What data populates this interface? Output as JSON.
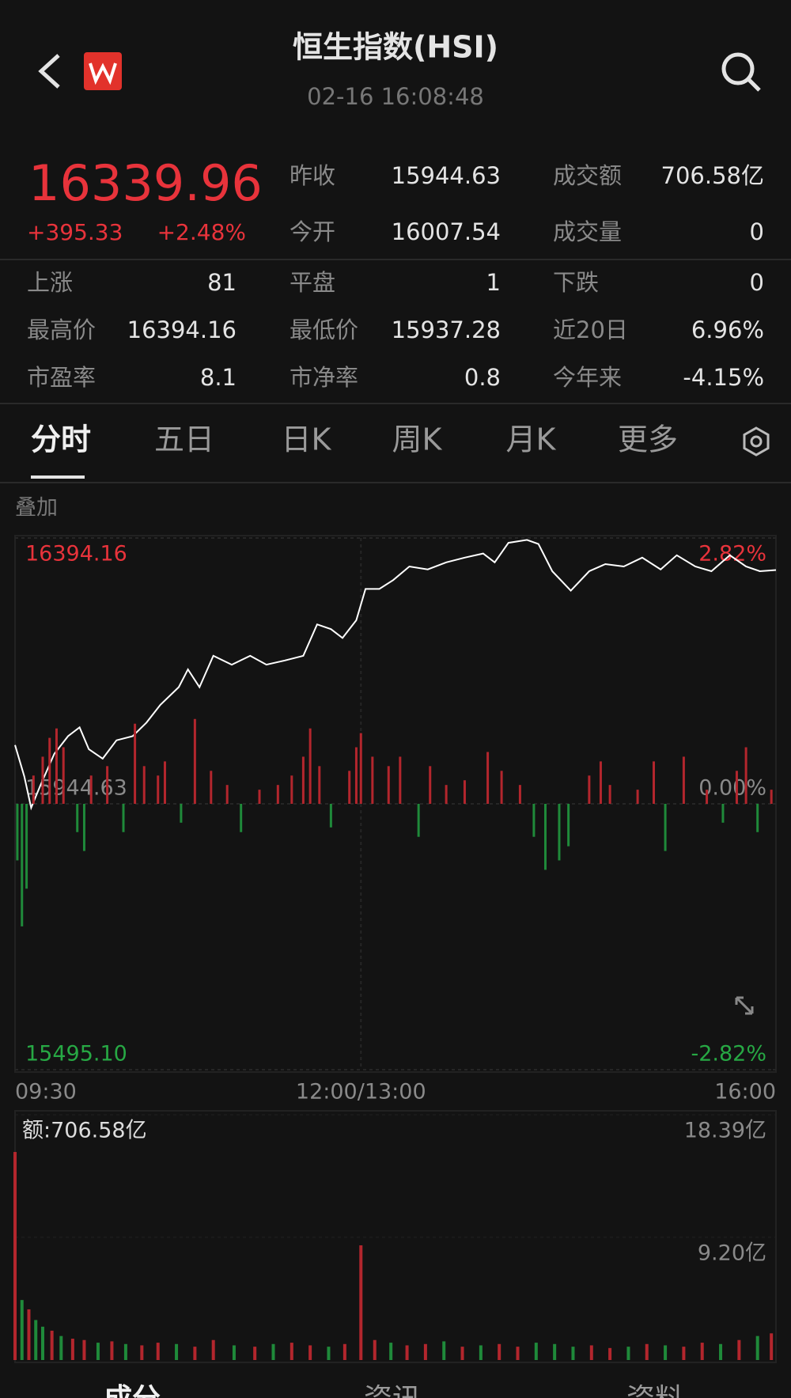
{
  "header": {
    "title": "恒生指数(HSI)",
    "time": "02-16 16:08:48"
  },
  "quote": {
    "price": "16339.96",
    "change": "+395.33",
    "change_pct": "+2.48%",
    "stats": [
      {
        "label": "昨收",
        "value": "15944.63"
      },
      {
        "label": "成交额",
        "value": "706.58亿"
      },
      {
        "label": "今开",
        "value": "16007.54"
      },
      {
        "label": "成交量",
        "value": "0"
      }
    ]
  },
  "market_stats": [
    {
      "label": "上涨",
      "value": "81"
    },
    {
      "label": "平盘",
      "value": "1"
    },
    {
      "label": "下跌",
      "value": "0"
    },
    {
      "label": "最高价",
      "value": "16394.16"
    },
    {
      "label": "最低价",
      "value": "15937.28"
    },
    {
      "label": "近20日",
      "value": "6.96%"
    },
    {
      "label": "市盈率",
      "value": "8.1"
    },
    {
      "label": "市净率",
      "value": "0.8"
    },
    {
      "label": "今年来",
      "value": "-4.15%"
    }
  ],
  "tabs": [
    "分时",
    "五日",
    "日K",
    "周K",
    "月K",
    "更多"
  ],
  "overlay_label": "叠加",
  "chart_data": [
    {
      "type": "line",
      "xlim": [
        0,
        330
      ],
      "xticks": [
        {
          "value": 0,
          "label": "09:30"
        },
        {
          "value": 150,
          "label": "12:00/13:00"
        },
        {
          "value": 330,
          "label": "16:00"
        }
      ],
      "ylim": [
        15495.1,
        16394.16
      ],
      "yticks": [
        {
          "value": 15495.1,
          "label": "15495.10"
        },
        15944.63,
        16394.16
      ],
      "ytick_colors": [
        "#27a844",
        "#8a8a8a",
        "#e8333b"
      ],
      "y2lim": [
        -2.82,
        2.82
      ],
      "y2ticks": [
        {
          "value": -2.82,
          "label": "-2.82%"
        },
        {
          "value": 0,
          "label": "0.00%"
        },
        {
          "value": 2.82,
          "label": "2.82%"
        }
      ],
      "x": [
        0,
        4,
        7,
        11,
        17,
        23,
        28,
        32,
        38,
        44,
        51,
        57,
        63,
        71,
        75,
        80,
        86,
        94,
        102,
        109,
        117,
        125,
        131,
        137,
        142,
        148,
        152,
        158,
        164,
        171,
        179,
        187,
        195,
        203,
        208,
        214,
        222,
        227,
        233,
        241,
        249,
        256,
        264,
        272,
        280,
        287,
        295,
        302,
        310,
        317,
        323,
        330
      ],
      "series": [
        {
          "color": "#ffffff",
          "values": [
            16044,
            15991,
            15938,
            15976,
            16029,
            16059,
            16074,
            16037,
            16021,
            16052,
            16059,
            16082,
            16112,
            16142,
            16172,
            16142,
            16195,
            16180,
            16195,
            16180,
            16187,
            16195,
            16248,
            16240,
            16225,
            16255,
            16308,
            16308,
            16323,
            16346,
            16341,
            16353,
            16361,
            16368,
            16353,
            16386,
            16391,
            16384,
            16338,
            16305,
            16338,
            16350,
            16346,
            16361,
            16341,
            16365,
            16346,
            16338,
            16365,
            16346,
            16338,
            16340
          ]
        },
        {
          "type": "bar",
          "axis": "y2",
          "up_color": "#b3262d",
          "down_color": "#1f8a3a",
          "x": [
            1,
            3,
            5,
            8,
            12,
            15,
            18,
            21,
            27,
            30,
            33,
            40,
            47,
            52,
            56,
            62,
            65,
            72,
            78,
            85,
            92,
            98,
            106,
            114,
            120,
            125,
            128,
            132,
            137,
            145,
            148,
            150,
            155,
            162,
            167,
            175,
            180,
            187,
            195,
            205,
            211,
            219,
            225,
            230,
            236,
            240,
            249,
            254,
            258,
            270,
            277,
            282,
            290,
            300,
            307,
            313,
            317,
            322,
            328
          ],
          "values": [
            -0.6,
            -1.3,
            -0.9,
            0.3,
            0.5,
            0.7,
            0.8,
            0.6,
            -0.3,
            -0.5,
            0.3,
            0.4,
            -0.3,
            0.85,
            0.4,
            0.3,
            0.45,
            -0.2,
            0.9,
            0.35,
            0.2,
            -0.3,
            0.15,
            0.2,
            0.3,
            0.5,
            0.8,
            0.4,
            -0.25,
            0.35,
            0.6,
            0.75,
            0.5,
            0.4,
            0.5,
            -0.35,
            0.4,
            0.2,
            0.25,
            0.55,
            0.35,
            0.2,
            -0.35,
            -0.7,
            -0.6,
            -0.45,
            0.3,
            0.45,
            0.2,
            0.15,
            0.45,
            -0.5,
            0.5,
            0.15,
            -0.2,
            0.35,
            0.6,
            -0.3,
            0.15
          ]
        }
      ]
    },
    {
      "type": "bar",
      "title": "额:706.58亿",
      "xlim": [
        0,
        330
      ],
      "ylim": [
        0,
        18.39
      ],
      "yticks": [
        {
          "value": 9.2,
          "label": "9.20亿"
        },
        {
          "value": 18.39,
          "label": "18.39亿"
        }
      ],
      "x": [
        0,
        3,
        6,
        9,
        12,
        16,
        20,
        25,
        30,
        36,
        42,
        48,
        55,
        62,
        70,
        78,
        86,
        95,
        104,
        112,
        120,
        128,
        136,
        143,
        150,
        156,
        163,
        170,
        178,
        186,
        194,
        202,
        210,
        218,
        226,
        234,
        242,
        250,
        258,
        266,
        274,
        282,
        290,
        298,
        306,
        314,
        322,
        328
      ],
      "values": [
        15.6,
        4.5,
        3.8,
        3.0,
        2.5,
        2.2,
        1.8,
        1.6,
        1.5,
        1.3,
        1.4,
        1.2,
        1.1,
        1.3,
        1.2,
        1.0,
        1.5,
        1.1,
        1.0,
        1.2,
        1.3,
        1.1,
        1.0,
        1.2,
        8.6,
        1.5,
        1.3,
        1.1,
        1.2,
        1.4,
        1.0,
        1.1,
        1.2,
        1.0,
        1.3,
        1.2,
        1.0,
        1.1,
        0.9,
        1.0,
        1.2,
        1.1,
        1.0,
        1.3,
        1.2,
        1.5,
        1.8,
        2.0
      ],
      "colors": [
        "#b3262d",
        "#1f8a3a",
        "#b3262d",
        "#1f8a3a",
        "#1f8a3a",
        "#b3262d",
        "#1f8a3a",
        "#b3262d",
        "#b3262d",
        "#1f8a3a",
        "#b3262d",
        "#1f8a3a",
        "#b3262d",
        "#b3262d",
        "#1f8a3a",
        "#b3262d",
        "#b3262d",
        "#1f8a3a",
        "#b3262d",
        "#1f8a3a",
        "#b3262d",
        "#b3262d",
        "#1f8a3a",
        "#b3262d",
        "#b3262d",
        "#b3262d",
        "#1f8a3a",
        "#b3262d",
        "#b3262d",
        "#1f8a3a",
        "#b3262d",
        "#1f8a3a",
        "#b3262d",
        "#b3262d",
        "#1f8a3a",
        "#1f8a3a",
        "#1f8a3a",
        "#b3262d",
        "#b3262d",
        "#1f8a3a",
        "#b3262d",
        "#1f8a3a",
        "#b3262d",
        "#b3262d",
        "#1f8a3a",
        "#b3262d",
        "#1f8a3a",
        "#b3262d"
      ]
    }
  ],
  "bottom_tabs": [
    "成分",
    "资讯",
    "资料"
  ]
}
